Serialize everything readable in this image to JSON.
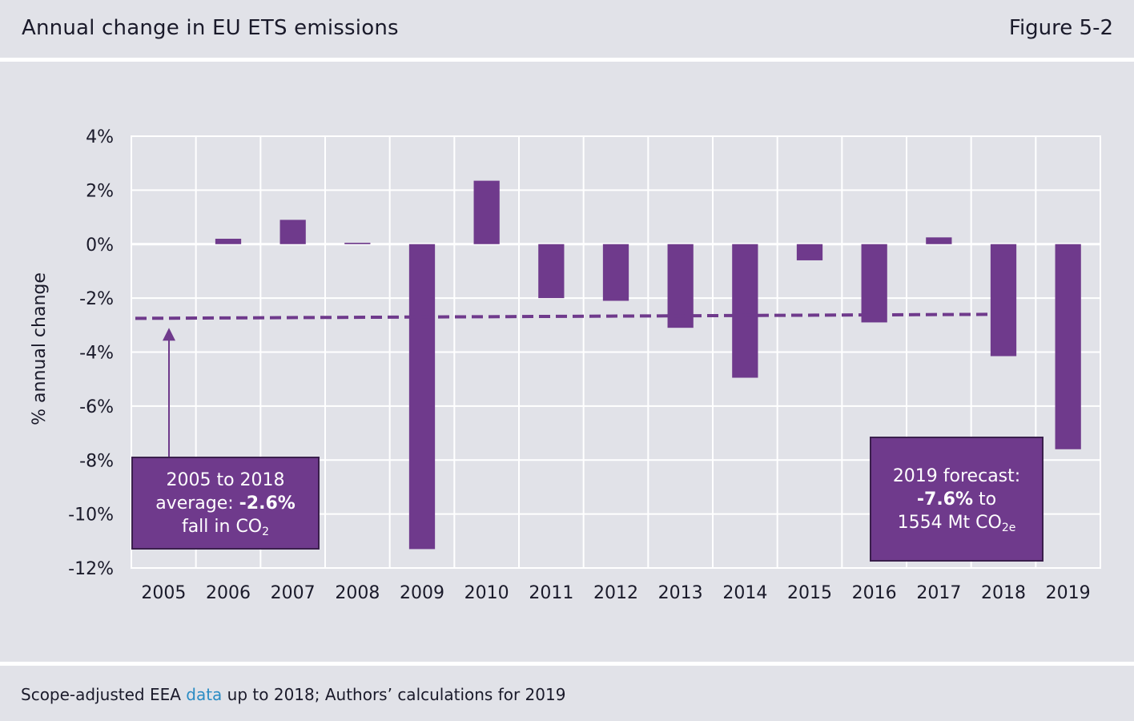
{
  "header": {
    "title": "Annual change in EU ETS emissions",
    "figure": "Figure 5-2"
  },
  "footer": {
    "prefix": "Scope-adjusted EEA ",
    "link_text": "data",
    "suffix": " up to 2018; Authors’ calculations for 2019"
  },
  "chart_data": {
    "type": "bar",
    "title": "Annual change in EU ETS emissions",
    "xlabel": "",
    "ylabel": "% annual change",
    "categories": [
      "2005",
      "2006",
      "2007",
      "2008",
      "2009",
      "2010",
      "2011",
      "2012",
      "2013",
      "2014",
      "2015",
      "2016",
      "2017",
      "2018",
      "2019"
    ],
    "values": [
      null,
      0.2,
      0.9,
      0.05,
      -11.3,
      2.35,
      -2.0,
      -2.1,
      -3.1,
      -4.95,
      -0.6,
      -2.9,
      0.25,
      -4.15,
      -7.6
    ],
    "ylim": [
      -12,
      4
    ],
    "yticks": [
      4,
      2,
      0,
      -2,
      -4,
      -6,
      -8,
      -10,
      -12
    ],
    "ytick_labels": [
      "4%",
      "2%",
      "0%",
      "-2%",
      "-4%",
      "-6%",
      "-8%",
      "-10%",
      "-12%"
    ],
    "average_line": {
      "start": -2.75,
      "end": -2.6,
      "label": "2005 to 2018 average"
    },
    "grid": true,
    "bar_color": "#6f3a8c"
  },
  "annotations": {
    "average": {
      "line1": "2005 to 2018",
      "line2a": "average: ",
      "line2b": "-2.6%",
      "line3a": "fall in CO",
      "line3sub": "2"
    },
    "forecast": {
      "line1": "2019 forecast:",
      "line2a": "-7.6%",
      "line2b": " to",
      "line3a": "1554 Mt CO",
      "line3sub": "2e"
    }
  }
}
